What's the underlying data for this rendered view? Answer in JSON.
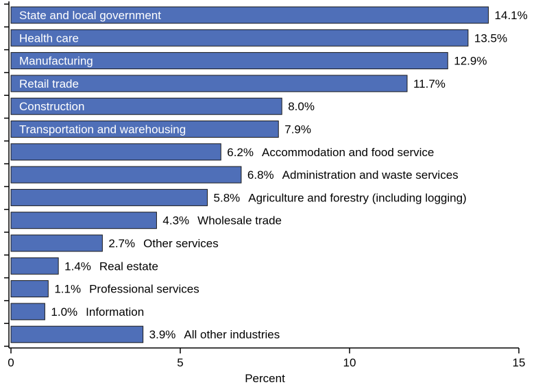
{
  "chart_data": {
    "type": "bar",
    "orientation": "horizontal",
    "title": "",
    "xlabel": "Percent",
    "ylabel": "",
    "xlim": [
      0,
      15
    ],
    "x_ticks": [
      0,
      5,
      10,
      15
    ],
    "grid": false,
    "legend": "none",
    "bar_color": "#4f6fb8",
    "value_suffix": "%",
    "categories": [
      "State and local government",
      "Health care",
      "Manufacturing",
      "Retail trade",
      "Construction",
      "Transportation and warehousing",
      "Accommodation and food service",
      "Administration and waste services",
      "Agriculture and forestry (including logging)",
      "Wholesale trade",
      "Other services",
      "Real estate",
      "Professional services",
      "Information",
      "All other industries"
    ],
    "values": [
      14.1,
      13.5,
      12.9,
      11.7,
      8.0,
      7.9,
      6.2,
      6.8,
      5.8,
      4.3,
      2.7,
      1.4,
      1.1,
      1.0,
      3.9
    ],
    "label_inside": [
      true,
      true,
      true,
      true,
      true,
      true,
      false,
      false,
      false,
      false,
      false,
      false,
      false,
      false,
      false
    ]
  }
}
